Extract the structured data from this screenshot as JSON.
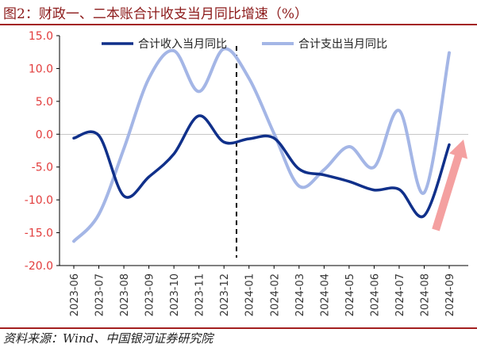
{
  "title": "图2：财政一、二本账合计收支当月同比增速（%）",
  "source": "资料来源：Wind、中国银河证券研究院",
  "chart_data": {
    "type": "line",
    "categories": [
      "2023-06",
      "2023-07",
      "2023-08",
      "2023-09",
      "2023-10",
      "2023-11",
      "2023-12",
      "2024-01",
      "2024-02",
      "2024-03",
      "2024-04",
      "2024-05",
      "2024-06",
      "2024-07",
      "2024-08",
      "2024-09"
    ],
    "series": [
      {
        "name": "合计收入当月同比",
        "color": "#10308a",
        "values": [
          -0.6,
          -0.2,
          -9.4,
          -6.5,
          -3.0,
          2.8,
          -1.2,
          -0.7,
          -0.6,
          -5.3,
          -6.2,
          -7.2,
          -8.5,
          -8.4,
          -12.4,
          -1.6
        ]
      },
      {
        "name": "合计支出当月同比",
        "color": "#a4b6e6",
        "values": [
          -16.3,
          -12.2,
          -2.2,
          8.5,
          12.7,
          6.5,
          13.0,
          8.5,
          0.1,
          -7.9,
          -5.4,
          -1.9,
          -5.0,
          3.6,
          -8.9,
          12.4
        ]
      }
    ],
    "yticks": [
      "15.0",
      "10.0",
      "5.0",
      "0.0",
      "-5.0",
      "-10.0",
      "-15.0",
      "-20.0"
    ],
    "ylim": [
      -20,
      15
    ],
    "divider_after": "2023-12",
    "annotation": "red upward arrow near 2024-09",
    "xlabel": "",
    "ylabel": ""
  },
  "colors": {
    "arrow": "#f4a0a0",
    "divider": "#000000",
    "tick_y": "#e23c3c",
    "accent": "#a31f1f"
  }
}
